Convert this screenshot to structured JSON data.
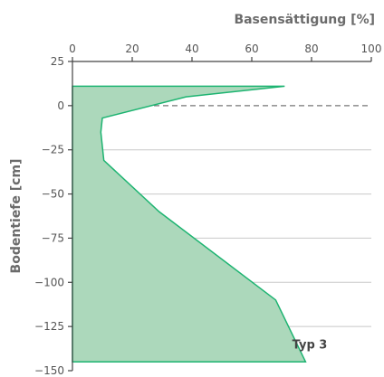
{
  "chart_data": {
    "type": "area",
    "xlabel": "Basensättigung [%]",
    "ylabel": "Bodentiefe [cm]",
    "xlim": [
      0,
      100
    ],
    "ylim": [
      -150,
      25
    ],
    "x_axis_position": "top",
    "x_ticks": [
      "0",
      "20",
      "40",
      "60",
      "80",
      "100"
    ],
    "y_ticks": [
      "25",
      "0",
      "−25",
      "−50",
      "−75",
      "−100",
      "−125",
      "−150"
    ],
    "grid": "horizontal",
    "reference_line": {
      "y": 0,
      "style": "dashed"
    },
    "series": [
      {
        "points": [
          {
            "x": 0,
            "y": 11
          },
          {
            "x": 71,
            "y": 11
          },
          {
            "x": 38,
            "y": 5
          },
          {
            "x": 10,
            "y": -7
          },
          {
            "x": 9.5,
            "y": -15
          },
          {
            "x": 10.5,
            "y": -31
          },
          {
            "x": 29,
            "y": -60
          },
          {
            "x": 68,
            "y": -110
          },
          {
            "x": 78,
            "y": -145
          },
          {
            "x": 0,
            "y": -145
          }
        ]
      }
    ],
    "annotations": [
      {
        "text": "Typ 3",
        "x": 80,
        "y": -135
      }
    ],
    "colors": {
      "line": "#1db471",
      "fill": "#acd8bb",
      "grid": "#c8c8c8",
      "axis": "#444444",
      "reference": "#777777"
    }
  }
}
